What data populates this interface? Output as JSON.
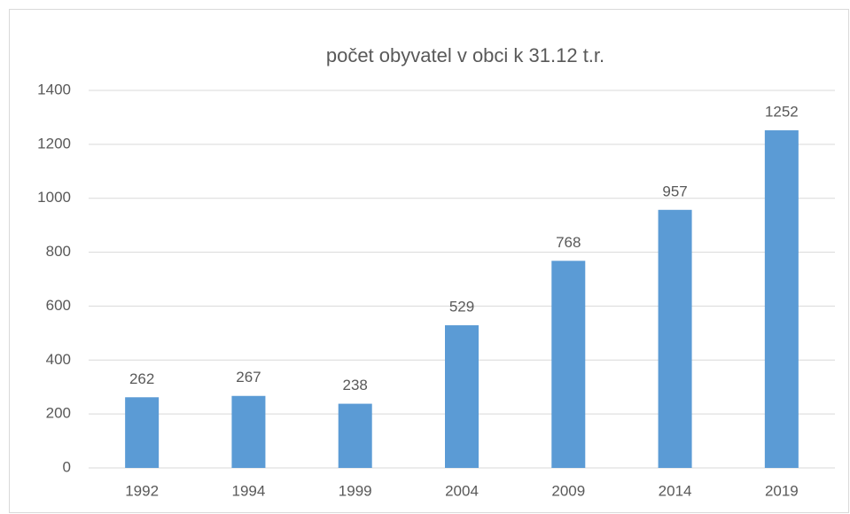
{
  "chart_data": {
    "type": "bar",
    "title": "počet obyvatel v obci k 31.12 t.r.",
    "categories": [
      "1992",
      "1994",
      "1999",
      "2004",
      "2009",
      "2014",
      "2019"
    ],
    "values": [
      262,
      267,
      238,
      529,
      768,
      957,
      1252
    ],
    "color": "#5b9bd5",
    "ylim": [
      0,
      1400
    ],
    "yticks": [
      0,
      200,
      400,
      600,
      800,
      1000,
      1200,
      1400
    ],
    "grid": true
  }
}
